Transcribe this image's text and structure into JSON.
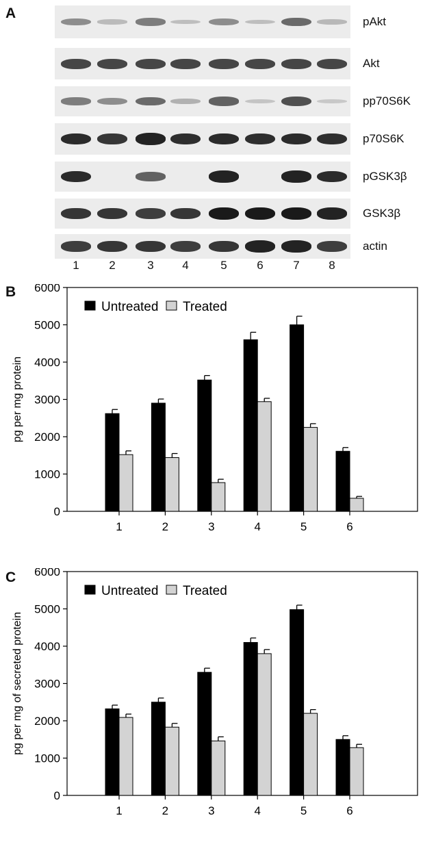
{
  "panel_labels": {
    "a": "A",
    "b": "B",
    "c": "C"
  },
  "blot": {
    "rows": [
      {
        "label": "pAkt",
        "intensities": [
          0.35,
          0.1,
          0.45,
          0.08,
          0.35,
          0.08,
          0.55,
          0.12
        ]
      },
      {
        "label": "Akt",
        "intensities": [
          0.75,
          0.75,
          0.75,
          0.75,
          0.75,
          0.75,
          0.75,
          0.75
        ]
      },
      {
        "label": "pp70S6K",
        "intensities": [
          0.45,
          0.35,
          0.55,
          0.15,
          0.6,
          0.05,
          0.7,
          0.02
        ]
      },
      {
        "label": "p70S6K",
        "intensities": [
          0.9,
          0.85,
          0.95,
          0.88,
          0.9,
          0.88,
          0.9,
          0.88
        ]
      },
      {
        "label": "pGSK3β",
        "intensities": [
          0.9,
          0.0,
          0.6,
          0.0,
          0.95,
          0.0,
          0.95,
          0.9
        ]
      },
      {
        "label": "GSK3β",
        "intensities": [
          0.85,
          0.85,
          0.8,
          0.85,
          1.0,
          1.0,
          1.0,
          0.95
        ]
      },
      {
        "label": "actin",
        "intensities": [
          0.8,
          0.85,
          0.85,
          0.8,
          0.85,
          0.95,
          0.95,
          0.8
        ]
      }
    ],
    "lanes": [
      "1",
      "2",
      "3",
      "4",
      "5",
      "6",
      "7",
      "8"
    ],
    "band_color": "#1a1a1a"
  },
  "chart_data": [
    {
      "type": "bar",
      "panel": "B",
      "categories": [
        "1",
        "2",
        "3",
        "4",
        "5",
        "6"
      ],
      "series": [
        {
          "name": "Untreated",
          "values": [
            2620,
            2900,
            3520,
            4600,
            5000,
            1610
          ],
          "errors": [
            110,
            110,
            120,
            200,
            230,
            100
          ],
          "color": "#000000"
        },
        {
          "name": "Treated",
          "values": [
            1520,
            1440,
            770,
            2940,
            2250,
            350
          ],
          "errors": [
            100,
            110,
            90,
            90,
            100,
            50
          ],
          "color": "#d3d3d3"
        }
      ],
      "ylabel": "pg per mg  protein",
      "ylim": [
        0,
        6000
      ],
      "yticks": [
        "0",
        "1000",
        "2000",
        "3000",
        "4000",
        "5000",
        "6000"
      ],
      "legend": "top-left"
    },
    {
      "type": "bar",
      "panel": "C",
      "categories": [
        "1",
        "2",
        "3",
        "4",
        "5",
        "6"
      ],
      "series": [
        {
          "name": "Untreated",
          "values": [
            2320,
            2500,
            3300,
            4100,
            4980,
            1500
          ],
          "errors": [
            100,
            110,
            110,
            120,
            120,
            100
          ],
          "color": "#000000"
        },
        {
          "name": "Treated",
          "values": [
            2090,
            1830,
            1460,
            3800,
            2200,
            1280
          ],
          "errors": [
            90,
            100,
            110,
            110,
            100,
            90
          ],
          "color": "#d3d3d3"
        }
      ],
      "ylabel": "pg per mg of secreted  protein",
      "ylim": [
        0,
        6000
      ],
      "yticks": [
        "0",
        "1000",
        "2000",
        "3000",
        "4000",
        "5000",
        "6000"
      ],
      "legend": "top-left"
    }
  ]
}
